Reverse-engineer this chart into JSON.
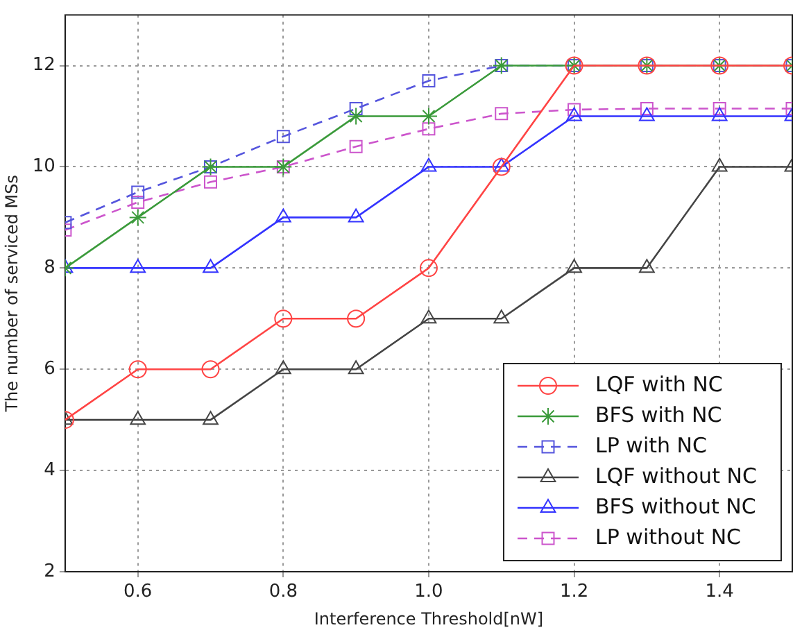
{
  "chart_data": {
    "type": "line",
    "xlabel": "Interference Threshold[nW]",
    "ylabel": "The number of serviced MSs",
    "x": [
      0.5,
      0.6,
      0.7,
      0.8,
      0.9,
      1.0,
      1.1,
      1.2,
      1.3,
      1.4,
      1.5
    ],
    "xlim": [
      0.5,
      1.5
    ],
    "xticks": [
      {
        "value": 0.6,
        "label": "0.6"
      },
      {
        "value": 0.8,
        "label": "0.8"
      },
      {
        "value": 1.0,
        "label": "1.0"
      },
      {
        "value": 1.2,
        "label": "1.2"
      },
      {
        "value": 1.4,
        "label": "1.4"
      }
    ],
    "ylim": [
      2,
      13
    ],
    "yticks": [
      2,
      4,
      6,
      8,
      10,
      12
    ],
    "grid": true,
    "legend": "bottom right",
    "series": [
      {
        "name": "LQF with NC",
        "color": "#ff4444",
        "marker": "circle",
        "line_style": "solid",
        "values": [
          5,
          6,
          6,
          7,
          7,
          8,
          10,
          12,
          12,
          12,
          12
        ]
      },
      {
        "name": "BFS with NC",
        "color": "#3a9a3a",
        "marker": "cross",
        "line_style": "solid",
        "values": [
          8,
          9,
          10,
          10,
          11,
          11,
          12,
          12,
          12,
          12,
          12
        ]
      },
      {
        "name": "LP with NC",
        "color": "#5555dd",
        "marker": "square",
        "line_style": "dashed",
        "values": [
          8.9,
          9.5,
          10,
          10.6,
          11.15,
          11.7,
          12,
          12,
          12,
          12,
          12
        ]
      },
      {
        "name": "LQF without NC",
        "color": "#444444",
        "marker": "triangle",
        "line_style": "solid",
        "values": [
          5,
          5,
          5,
          6,
          6,
          7,
          7,
          8,
          8,
          10,
          10
        ]
      },
      {
        "name": "BFS without NC",
        "color": "#3333ff",
        "marker": "triangle",
        "line_style": "solid",
        "values": [
          8,
          8,
          8,
          9,
          9,
          10,
          10,
          11,
          11,
          11,
          11
        ]
      },
      {
        "name": "LP without NC",
        "color": "#cc55cc",
        "marker": "square",
        "line_style": "dashed",
        "values": [
          8.75,
          9.3,
          9.7,
          10,
          10.4,
          10.75,
          11.05,
          11.13,
          11.15,
          11.15,
          11.15
        ]
      }
    ]
  }
}
